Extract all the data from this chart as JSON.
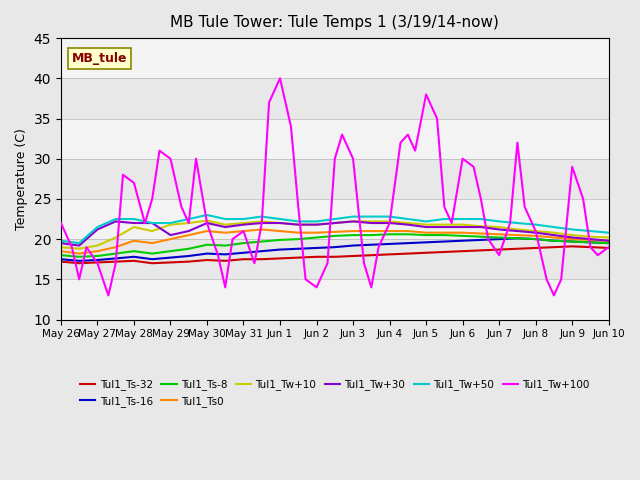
{
  "title": "MB Tule Tower: Tule Temps 1 (3/19/14-now)",
  "ylabel": "Temperature (C)",
  "xlabel": "",
  "ylim": [
    10,
    45
  ],
  "xlim": [
    0,
    15
  ],
  "yticks": [
    10,
    15,
    20,
    25,
    30,
    35,
    40,
    45
  ],
  "xtick_labels": [
    "May 26",
    "May 27",
    "May 28",
    "May 29",
    "May 30",
    "May 31",
    "Jun 1",
    "Jun 2",
    "Jun 3",
    "Jun 4",
    "Jun 5",
    "Jun 6",
    "Jun 7",
    "Jun 8",
    "Jun 9",
    "Jun 10"
  ],
  "xtick_positions": [
    0,
    1,
    2,
    3,
    4,
    5,
    6,
    7,
    8,
    9,
    10,
    11,
    12,
    13,
    14,
    15
  ],
  "background_color": "#e8e8e8",
  "plot_bg_color": "#e8e8e8",
  "watermark": "MB_tule",
  "series": {
    "Tul1_Ts-32": {
      "color": "#cc0000",
      "lw": 1.5,
      "data_x": [
        0,
        0.5,
        1,
        1.5,
        2,
        2.5,
        3,
        3.5,
        4,
        4.5,
        5,
        5.5,
        6,
        6.5,
        7,
        7.5,
        8,
        8.5,
        9,
        9.5,
        10,
        10.5,
        11,
        11.5,
        12,
        12.5,
        13,
        13.5,
        14,
        14.5,
        15
      ],
      "data_y": [
        17.2,
        17.0,
        17.1,
        17.2,
        17.3,
        17.0,
        17.1,
        17.2,
        17.4,
        17.3,
        17.5,
        17.5,
        17.6,
        17.7,
        17.8,
        17.8,
        17.9,
        18.0,
        18.1,
        18.2,
        18.3,
        18.4,
        18.5,
        18.6,
        18.7,
        18.8,
        18.9,
        19.0,
        19.1,
        19.0,
        18.9
      ]
    },
    "Tul1_Ts-16": {
      "color": "#0000cc",
      "lw": 1.5,
      "data_x": [
        0,
        0.5,
        1,
        1.5,
        2,
        2.5,
        3,
        3.5,
        4,
        4.5,
        5,
        5.5,
        6,
        6.5,
        7,
        7.5,
        8,
        8.5,
        9,
        9.5,
        10,
        10.5,
        11,
        11.5,
        12,
        12.5,
        13,
        13.5,
        14,
        14.5,
        15
      ],
      "data_y": [
        17.5,
        17.3,
        17.4,
        17.6,
        17.8,
        17.5,
        17.7,
        17.9,
        18.2,
        18.1,
        18.3,
        18.5,
        18.7,
        18.8,
        18.9,
        19.0,
        19.2,
        19.3,
        19.4,
        19.5,
        19.6,
        19.7,
        19.8,
        19.9,
        20.0,
        20.1,
        20.0,
        19.8,
        19.7,
        19.6,
        19.5
      ]
    },
    "Tul1_Ts-8": {
      "color": "#00cc00",
      "lw": 1.5,
      "data_x": [
        0,
        0.5,
        1,
        1.5,
        2,
        2.5,
        3,
        3.5,
        4,
        4.5,
        5,
        5.5,
        6,
        6.5,
        7,
        7.5,
        8,
        8.5,
        9,
        9.5,
        10,
        10.5,
        11,
        11.5,
        12,
        12.5,
        13,
        13.5,
        14,
        14.5,
        15
      ],
      "data_y": [
        18.0,
        17.8,
        17.9,
        18.2,
        18.5,
        18.2,
        18.5,
        18.8,
        19.3,
        19.2,
        19.5,
        19.7,
        19.9,
        20.0,
        20.2,
        20.4,
        20.5,
        20.5,
        20.6,
        20.6,
        20.5,
        20.5,
        20.4,
        20.3,
        20.2,
        20.1,
        20.0,
        19.8,
        19.7,
        19.6,
        19.5
      ]
    },
    "Tul1_Ts0": {
      "color": "#ff8800",
      "lw": 1.5,
      "data_x": [
        0,
        0.5,
        1,
        1.5,
        2,
        2.5,
        3,
        3.5,
        4,
        4.5,
        5,
        5.5,
        6,
        6.5,
        7,
        7.5,
        8,
        8.5,
        9,
        9.5,
        10,
        10.5,
        11,
        11.5,
        12,
        12.5,
        13,
        13.5,
        14,
        14.5,
        15
      ],
      "data_y": [
        18.5,
        18.2,
        18.5,
        19.0,
        19.8,
        19.5,
        20.0,
        20.5,
        21.0,
        20.8,
        21.0,
        21.2,
        21.0,
        20.8,
        20.8,
        20.9,
        21.0,
        21.0,
        21.0,
        21.0,
        20.8,
        20.8,
        20.8,
        20.7,
        20.6,
        20.5,
        20.4,
        20.2,
        20.0,
        19.9,
        19.8
      ]
    },
    "Tul1_Tw+10": {
      "color": "#cccc00",
      "lw": 1.5,
      "data_x": [
        0,
        0.5,
        1,
        1.5,
        2,
        2.5,
        3,
        3.5,
        4,
        4.5,
        5,
        5.5,
        6,
        6.5,
        7,
        7.5,
        8,
        8.5,
        9,
        9.5,
        10,
        10.5,
        11,
        11.5,
        12,
        12.5,
        13,
        13.5,
        14,
        14.5,
        15
      ],
      "data_y": [
        19.0,
        18.8,
        19.2,
        20.2,
        21.5,
        21.0,
        21.8,
        22.0,
        22.3,
        21.8,
        22.0,
        22.2,
        22.0,
        21.8,
        21.8,
        22.0,
        22.2,
        22.2,
        22.2,
        22.0,
        21.8,
        21.8,
        21.8,
        21.6,
        21.5,
        21.2,
        21.0,
        20.8,
        20.5,
        20.3,
        20.2
      ]
    },
    "Tul1_Tw+30": {
      "color": "#8800cc",
      "lw": 1.5,
      "data_x": [
        0,
        0.5,
        1,
        1.5,
        2,
        2.5,
        3,
        3.5,
        4,
        4.5,
        5,
        5.5,
        6,
        6.5,
        7,
        7.5,
        8,
        8.5,
        9,
        9.5,
        10,
        10.5,
        11,
        11.5,
        12,
        12.5,
        13,
        13.5,
        14,
        14.5,
        15
      ],
      "data_y": [
        19.5,
        19.2,
        21.2,
        22.2,
        22.0,
        22.0,
        20.5,
        21.0,
        22.0,
        21.5,
        21.8,
        22.0,
        22.0,
        21.8,
        21.8,
        22.0,
        22.2,
        22.0,
        22.0,
        21.8,
        21.5,
        21.5,
        21.5,
        21.5,
        21.2,
        21.0,
        20.8,
        20.5,
        20.2,
        20.0,
        19.8
      ]
    },
    "Tul1_Tw+50": {
      "color": "#00cccc",
      "lw": 1.5,
      "data_x": [
        0,
        0.5,
        1,
        1.5,
        2,
        2.5,
        3,
        3.5,
        4,
        4.5,
        5,
        5.5,
        6,
        6.5,
        7,
        7.5,
        8,
        8.5,
        9,
        9.5,
        10,
        10.5,
        11,
        11.5,
        12,
        12.5,
        13,
        13.5,
        14,
        14.5,
        15
      ],
      "data_y": [
        19.8,
        19.5,
        21.5,
        22.5,
        22.5,
        22.0,
        22.0,
        22.5,
        23.0,
        22.5,
        22.5,
        22.8,
        22.5,
        22.2,
        22.2,
        22.5,
        22.8,
        22.8,
        22.8,
        22.5,
        22.2,
        22.5,
        22.5,
        22.5,
        22.2,
        22.0,
        21.8,
        21.5,
        21.2,
        21.0,
        20.8
      ]
    },
    "Tul1_Tw+100": {
      "color": "#ff00ff",
      "lw": 1.5,
      "data_x": [
        0,
        1,
        2,
        3,
        4,
        5,
        6,
        7,
        8,
        9,
        10,
        11,
        12,
        13,
        14,
        15
      ],
      "data_y_peaks": [
        22,
        31,
        28,
        27,
        31,
        37,
        40,
        34,
        30,
        32,
        33,
        38,
        35,
        32,
        29,
        19
      ],
      "data_y_troughs": [
        15,
        17,
        13,
        14,
        15,
        17,
        14,
        17,
        14,
        16,
        15,
        15,
        13,
        15,
        13,
        19
      ],
      "data_x_full": [
        0,
        0.3,
        0.5,
        0.7,
        1,
        1.3,
        1.5,
        1.7,
        2,
        2.3,
        2.5,
        2.7,
        3,
        3.3,
        3.5,
        3.7,
        4,
        4.3,
        4.5,
        4.7,
        5,
        5.3,
        5.5,
        5.7,
        6,
        6.3,
        6.5,
        6.7,
        7,
        7.3,
        7.5,
        7.7,
        8,
        8.3,
        8.5,
        8.7,
        9,
        9.3,
        9.5,
        9.7,
        10,
        10.3,
        10.5,
        10.7,
        11,
        11.3,
        11.5,
        11.7,
        12,
        12.3,
        12.5,
        12.7,
        13,
        13.3,
        13.5,
        13.7,
        14,
        14.3,
        14.5,
        14.7,
        15
      ],
      "data_y_full": [
        22,
        19,
        15,
        19,
        17,
        13,
        17,
        28,
        27,
        22,
        25,
        31,
        30,
        24,
        22,
        30,
        22,
        18,
        14,
        20,
        21,
        17,
        22,
        37,
        40,
        34,
        24,
        15,
        14,
        17,
        30,
        33,
        30,
        17,
        14,
        19,
        22,
        32,
        33,
        31,
        38,
        35,
        24,
        22,
        30,
        29,
        25,
        20,
        18,
        22,
        32,
        24,
        21,
        15,
        13,
        15,
        29,
        25,
        19,
        18,
        19
      ]
    }
  },
  "legend_entries": [
    {
      "label": "Tul1_Ts-32",
      "color": "#cc0000"
    },
    {
      "label": "Tul1_Ts-16",
      "color": "#0000cc"
    },
    {
      "label": "Tul1_Ts-8",
      "color": "#00cc00"
    },
    {
      "label": "Tul1_Ts0",
      "color": "#ff8800"
    },
    {
      "label": "Tul1_Tw+10",
      "color": "#cccc00"
    },
    {
      "label": "Tul1_Tw+30",
      "color": "#8800cc"
    },
    {
      "label": "Tul1_Tw+50",
      "color": "#00cccc"
    },
    {
      "label": "Tul1_Tw+100",
      "color": "#ff00ff"
    }
  ]
}
